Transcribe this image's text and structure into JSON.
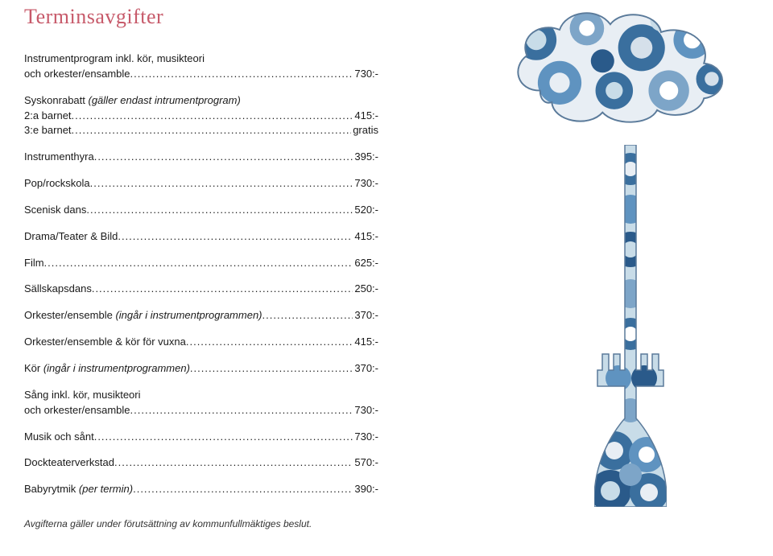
{
  "colors": {
    "accent": "#c75a6a",
    "text": "#1a1a1a",
    "footer": "#333333",
    "cloud_outline": "#5a7a9a",
    "cloud_bg": "#e8eef4",
    "cloud_accent1": "#3a6f9e",
    "cloud_accent2": "#7da5c8",
    "cloud_accent3": "#d5e0ea",
    "trumpet_dark": "#2a5a8a",
    "trumpet_mid": "#5f93c0",
    "trumpet_light": "#c8dce8"
  },
  "typography": {
    "title_fontsize": 26,
    "body_fontsize": 13,
    "footer_fontsize": 12
  },
  "title": "Terminsavgifter",
  "rightColumnEdge": 440,
  "items": [
    {
      "label": "Instrumentprogram inkl. kör, musikteori",
      "label2": "och orkester/ensamble",
      "value": "730:-"
    },
    {
      "label": "Syskonrabatt ",
      "note": "(gäller endast intrumentprogram)",
      "skip_dots": true,
      "sub": [
        {
          "label": "2:a barnet",
          "value": "415:-"
        },
        {
          "label": "3:e barnet",
          "value": "gratis"
        }
      ]
    },
    {
      "label": "Instrumenthyra",
      "value": "395:-"
    },
    {
      "label": "Pop/rockskola",
      "value": "730:-"
    },
    {
      "label": "Scenisk dans",
      "value": "520:-"
    },
    {
      "label": "Drama/Teater & Bild",
      "value": "415:-"
    },
    {
      "label": "Film",
      "value": "625:-"
    },
    {
      "label": "Sällskapsdans",
      "value": "250:-"
    },
    {
      "label": "Orkester/ensemble ",
      "note": "(ingår i instrumentprogrammen)",
      "value": "370:-"
    },
    {
      "label": "Orkester/ensemble & kör för vuxna",
      "value": "415:-"
    },
    {
      "label": "Kör ",
      "note": "(ingår i instrumentprogrammen)",
      "value": "370:-"
    },
    {
      "label": "Sång inkl. kör, musikteori",
      "label2": "och orkester/ensamble",
      "value": "730:-"
    },
    {
      "label": "Musik och sånt",
      "value": "730:-"
    },
    {
      "label": "Dockteaterverkstad",
      "value": "570:-"
    },
    {
      "label": "Babyrytmik ",
      "note": "(per termin)",
      "value": "390:-"
    }
  ],
  "footer": "Avgifterna gäller under förutsättning av kommunfullmäktiges beslut."
}
